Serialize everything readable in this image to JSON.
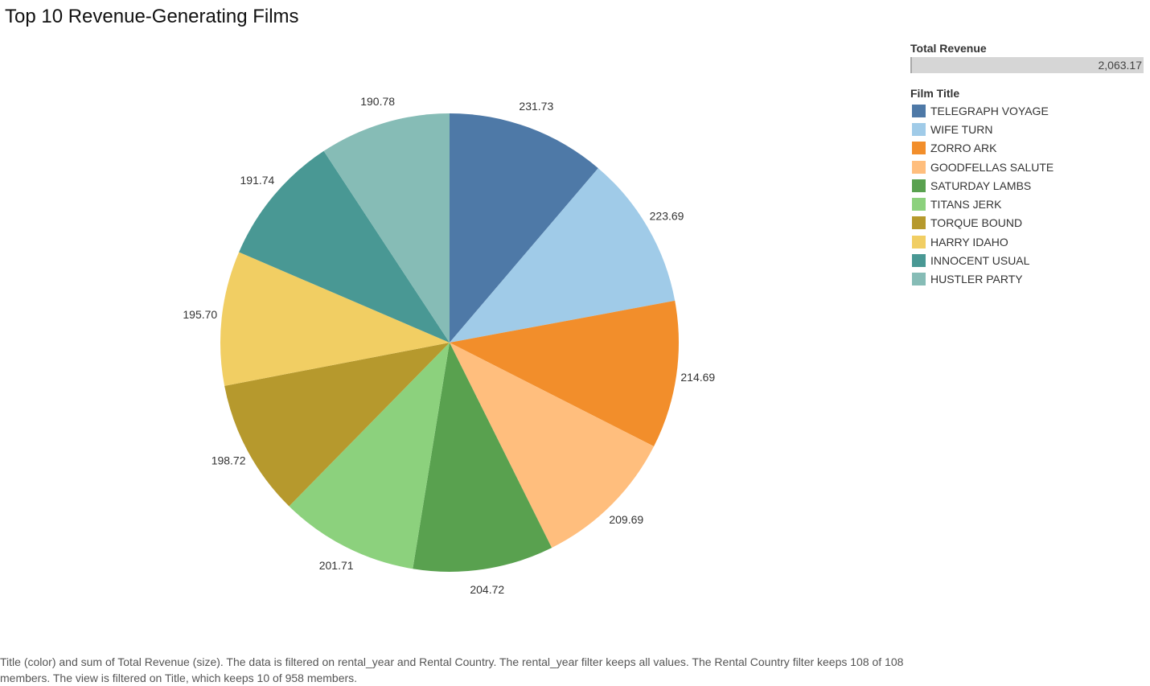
{
  "page": {
    "title": "Top 10 Revenue-Generating Films",
    "footnote": "Title (color) and sum of Total Revenue (size). The data is filtered on rental_year and Rental Country. The rental_year filter keeps all values. The Rental Country filter keeps 108 of 108 members. The view is filtered on Title, which keeps 10 of 958 members."
  },
  "legend": {
    "size_title": "Total Revenue",
    "size_max_label": "2,063.17",
    "color_title": "Film Title"
  },
  "chart_data": {
    "type": "pie",
    "title": "Top 10 Revenue-Generating Films",
    "legend_position": "right",
    "start_angle_deg": 0,
    "direction": "clockwise",
    "slices": [
      {
        "label": "TELEGRAPH VOYAGE",
        "value": 231.73,
        "value_label": "231.73",
        "color": "#4e79a7"
      },
      {
        "label": "WIFE TURN",
        "value": 223.69,
        "value_label": "223.69",
        "color": "#a0cbe8"
      },
      {
        "label": "ZORRO ARK",
        "value": 214.69,
        "value_label": "214.69",
        "color": "#f28e2b"
      },
      {
        "label": "GOODFELLAS SALUTE",
        "value": 209.69,
        "value_label": "209.69",
        "color": "#ffbe7d"
      },
      {
        "label": "SATURDAY LAMBS",
        "value": 204.72,
        "value_label": "204.72",
        "color": "#59a14f"
      },
      {
        "label": "TITANS JERK",
        "value": 201.71,
        "value_label": "201.71",
        "color": "#8cd17d"
      },
      {
        "label": "TORQUE BOUND",
        "value": 198.72,
        "value_label": "198.72",
        "color": "#b6992d"
      },
      {
        "label": "HARRY IDAHO",
        "value": 195.7,
        "value_label": "195.70",
        "color": "#f1ce63"
      },
      {
        "label": "INNOCENT USUAL",
        "value": 191.74,
        "value_label": "191.74",
        "color": "#499894"
      },
      {
        "label": "HUSTLER PARTY",
        "value": 190.78,
        "value_label": "190.78",
        "color": "#86bcb6"
      }
    ]
  }
}
